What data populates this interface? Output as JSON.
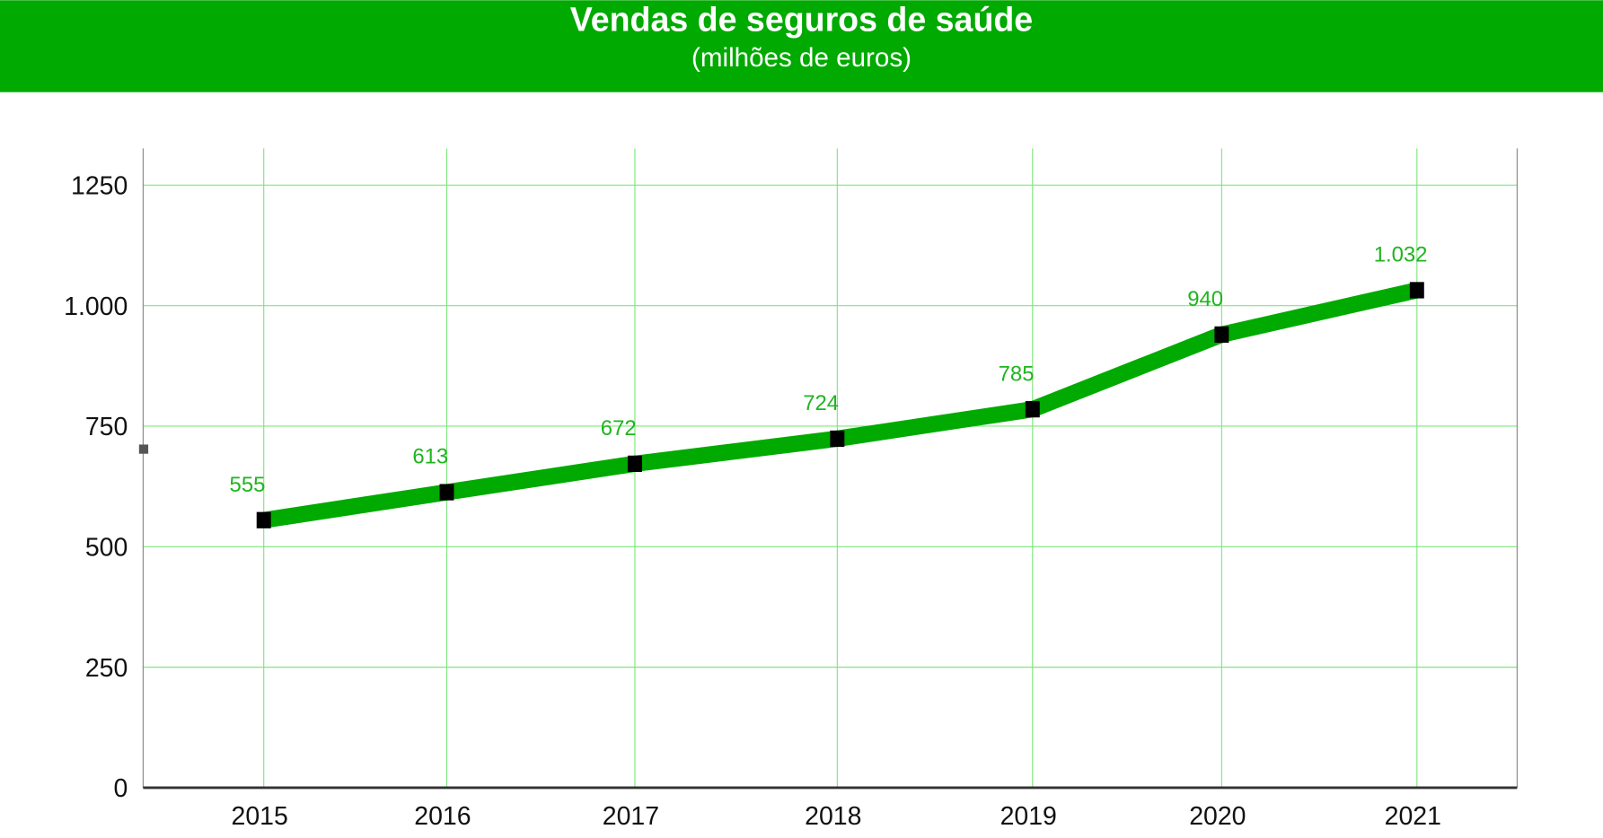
{
  "header": {
    "title": "Vendas de seguros de saúde",
    "subtitle": "(milhões de euros)"
  },
  "colors": {
    "header_bg": "#00aa00",
    "line": "#00aa00",
    "grid": "#7de87d",
    "label": "#1fb51f",
    "marker": "#000000",
    "axis": "#333333"
  },
  "chart_data": {
    "type": "line",
    "title": "Vendas de seguros de saúde",
    "subtitle": "(milhões de euros)",
    "xlabel": "",
    "ylabel": "",
    "categories": [
      "2015",
      "2016",
      "2017",
      "2018",
      "2019",
      "2020",
      "2021"
    ],
    "values": [
      555,
      613,
      672,
      724,
      785,
      940,
      1032
    ],
    "data_labels": [
      "555",
      "613",
      "672",
      "724",
      "785",
      "940",
      "1.032"
    ],
    "ylim": [
      0,
      1330
    ],
    "y_ticks": [
      0,
      250,
      500,
      750,
      1000,
      1250
    ],
    "y_tick_labels": [
      "0",
      "250",
      "500",
      "750",
      "1.000",
      "1250"
    ],
    "grid": true,
    "legend": "none",
    "marker": "square"
  }
}
